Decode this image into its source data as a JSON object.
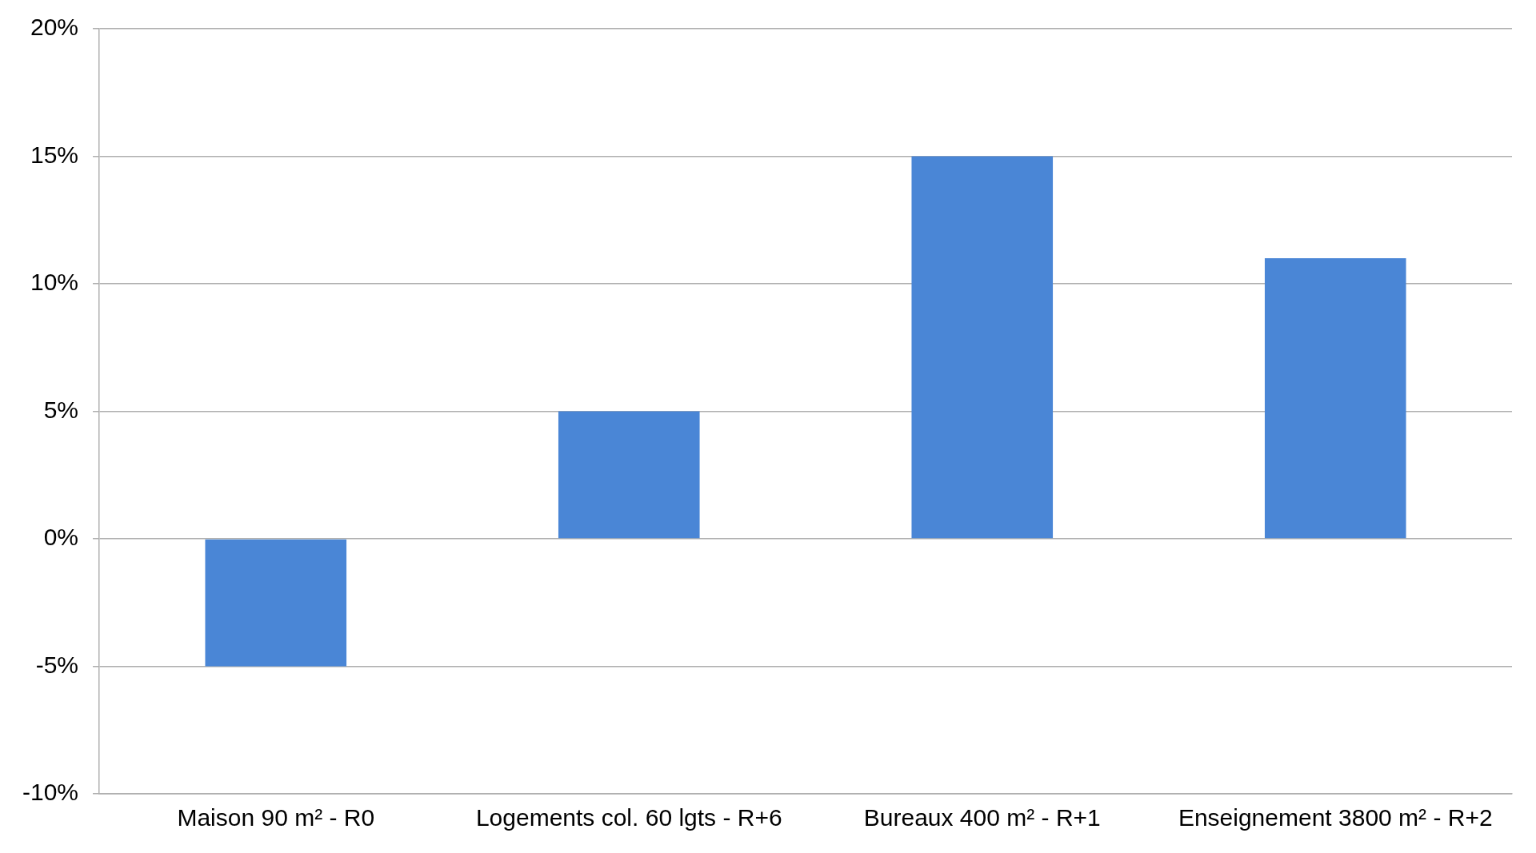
{
  "chart_data": {
    "type": "bar",
    "categories": [
      "Maison 90 m² - R0",
      "Logements col. 60 lgts - R+6",
      "Bureaux 400 m² - R+1",
      "Enseignement 3800 m² - R+2"
    ],
    "values": [
      -5,
      5,
      15,
      11
    ],
    "color": "#4a86d6",
    "ylim": [
      -10,
      20
    ],
    "yticks": [
      {
        "value": -10,
        "label": "-10%"
      },
      {
        "value": -5,
        "label": "-5%"
      },
      {
        "value": 0,
        "label": "0%"
      },
      {
        "value": 5,
        "label": "5%"
      },
      {
        "value": 10,
        "label": "10%"
      },
      {
        "value": 15,
        "label": "15%"
      },
      {
        "value": 20,
        "label": "20%"
      }
    ],
    "grid": "y",
    "legend": false
  }
}
